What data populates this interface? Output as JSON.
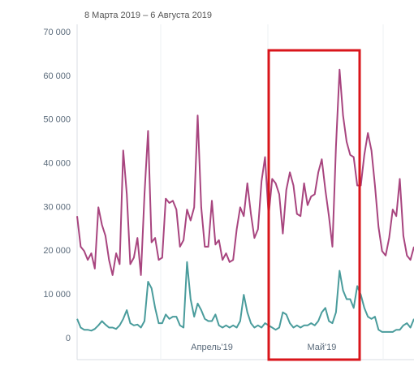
{
  "chart_data": {
    "type": "line",
    "subtitle": "8 Марта 2019 – 6 Августа 2019",
    "categories": [
      null,
      null,
      null,
      null,
      null,
      null,
      null,
      null,
      null,
      null,
      null,
      null,
      null,
      null,
      null,
      null,
      null,
      null,
      null,
      null,
      null,
      null,
      null,
      null,
      null,
      null,
      null,
      null,
      null,
      null,
      null,
      null,
      null,
      null,
      null,
      null,
      null,
      null,
      "Апрель'19",
      null,
      null,
      null,
      null,
      null,
      null,
      null,
      null,
      null,
      null,
      null,
      null,
      null,
      null,
      null,
      null,
      null,
      null,
      null,
      null,
      null,
      null,
      null,
      null,
      null,
      null,
      null,
      null,
      null,
      null,
      "Май'19",
      null,
      null,
      null,
      null,
      null,
      null,
      null,
      null,
      null,
      null,
      null,
      null,
      null,
      null,
      null,
      null,
      null,
      null,
      null,
      null,
      null,
      null,
      null,
      null,
      null,
      null
    ],
    "series": [
      {
        "color": "#a8457f",
        "values": [
          28000,
          21000,
          20000,
          18000,
          19500,
          16000,
          30000,
          26000,
          23500,
          18000,
          14500,
          19500,
          17000,
          43000,
          33000,
          17000,
          18500,
          23000,
          14500,
          33000,
          47500,
          22000,
          23000,
          18000,
          18500,
          32000,
          31000,
          31500,
          29500,
          21000,
          22500,
          29500,
          27000,
          30000,
          51000,
          30000,
          21000,
          21000,
          31500,
          21500,
          22500,
          18000,
          19500,
          17500,
          18000,
          25000,
          30000,
          28000,
          35500,
          28500,
          23000,
          25000,
          36000,
          41500,
          28000,
          36500,
          35500,
          33000,
          24000,
          34000,
          38000,
          35000,
          28500,
          28000,
          35500,
          30500,
          32500,
          33000,
          38000,
          41000,
          34000,
          28000,
          21000,
          44000,
          61500,
          51000,
          45000,
          42000,
          41500,
          35000,
          35000,
          42000,
          47000,
          43000,
          35000,
          25500,
          20000,
          19000,
          23000,
          29500,
          28000,
          36500,
          23500,
          19000,
          18000,
          21000
        ]
      },
      {
        "color": "#4a9c9c",
        "values": [
          4500,
          2500,
          2000,
          2000,
          1800,
          2200,
          3000,
          4000,
          3200,
          2500,
          2500,
          2200,
          3000,
          4500,
          6500,
          3500,
          3000,
          3200,
          2500,
          4000,
          13000,
          11500,
          7000,
          3500,
          3500,
          5500,
          4500,
          5000,
          5000,
          3000,
          2500,
          17500,
          9000,
          5000,
          8000,
          6500,
          4500,
          4000,
          4000,
          5500,
          3000,
          2500,
          3000,
          2500,
          3000,
          2500,
          4000,
          10000,
          6000,
          3500,
          2500,
          3000,
          2500,
          3500,
          3000,
          2500,
          2000,
          2500,
          6000,
          5500,
          3500,
          2500,
          3000,
          2500,
          3000,
          3000,
          3500,
          3000,
          4000,
          6000,
          7000,
          4000,
          3500,
          6000,
          15500,
          11000,
          9000,
          9000,
          7000,
          12000,
          10000,
          7000,
          5000,
          4500,
          5000,
          2000,
          1500,
          1500,
          1500,
          1500,
          2000,
          2000,
          3000,
          3500,
          2500,
          4500
        ]
      }
    ],
    "ylim": [
      0,
      70000
    ],
    "yticks": [
      0,
      {
        "value": 10000,
        "label": "10 000"
      },
      {
        "value": 20000,
        "label": "20 000"
      },
      {
        "value": 30000,
        "label": "30 000"
      },
      {
        "value": 40000,
        "label": "40 000"
      },
      {
        "value": 50000,
        "label": "50 000"
      },
      {
        "value": 60000,
        "label": "60 000"
      },
      {
        "value": 70000,
        "label": "70 000"
      }
    ],
    "grid": false
  }
}
